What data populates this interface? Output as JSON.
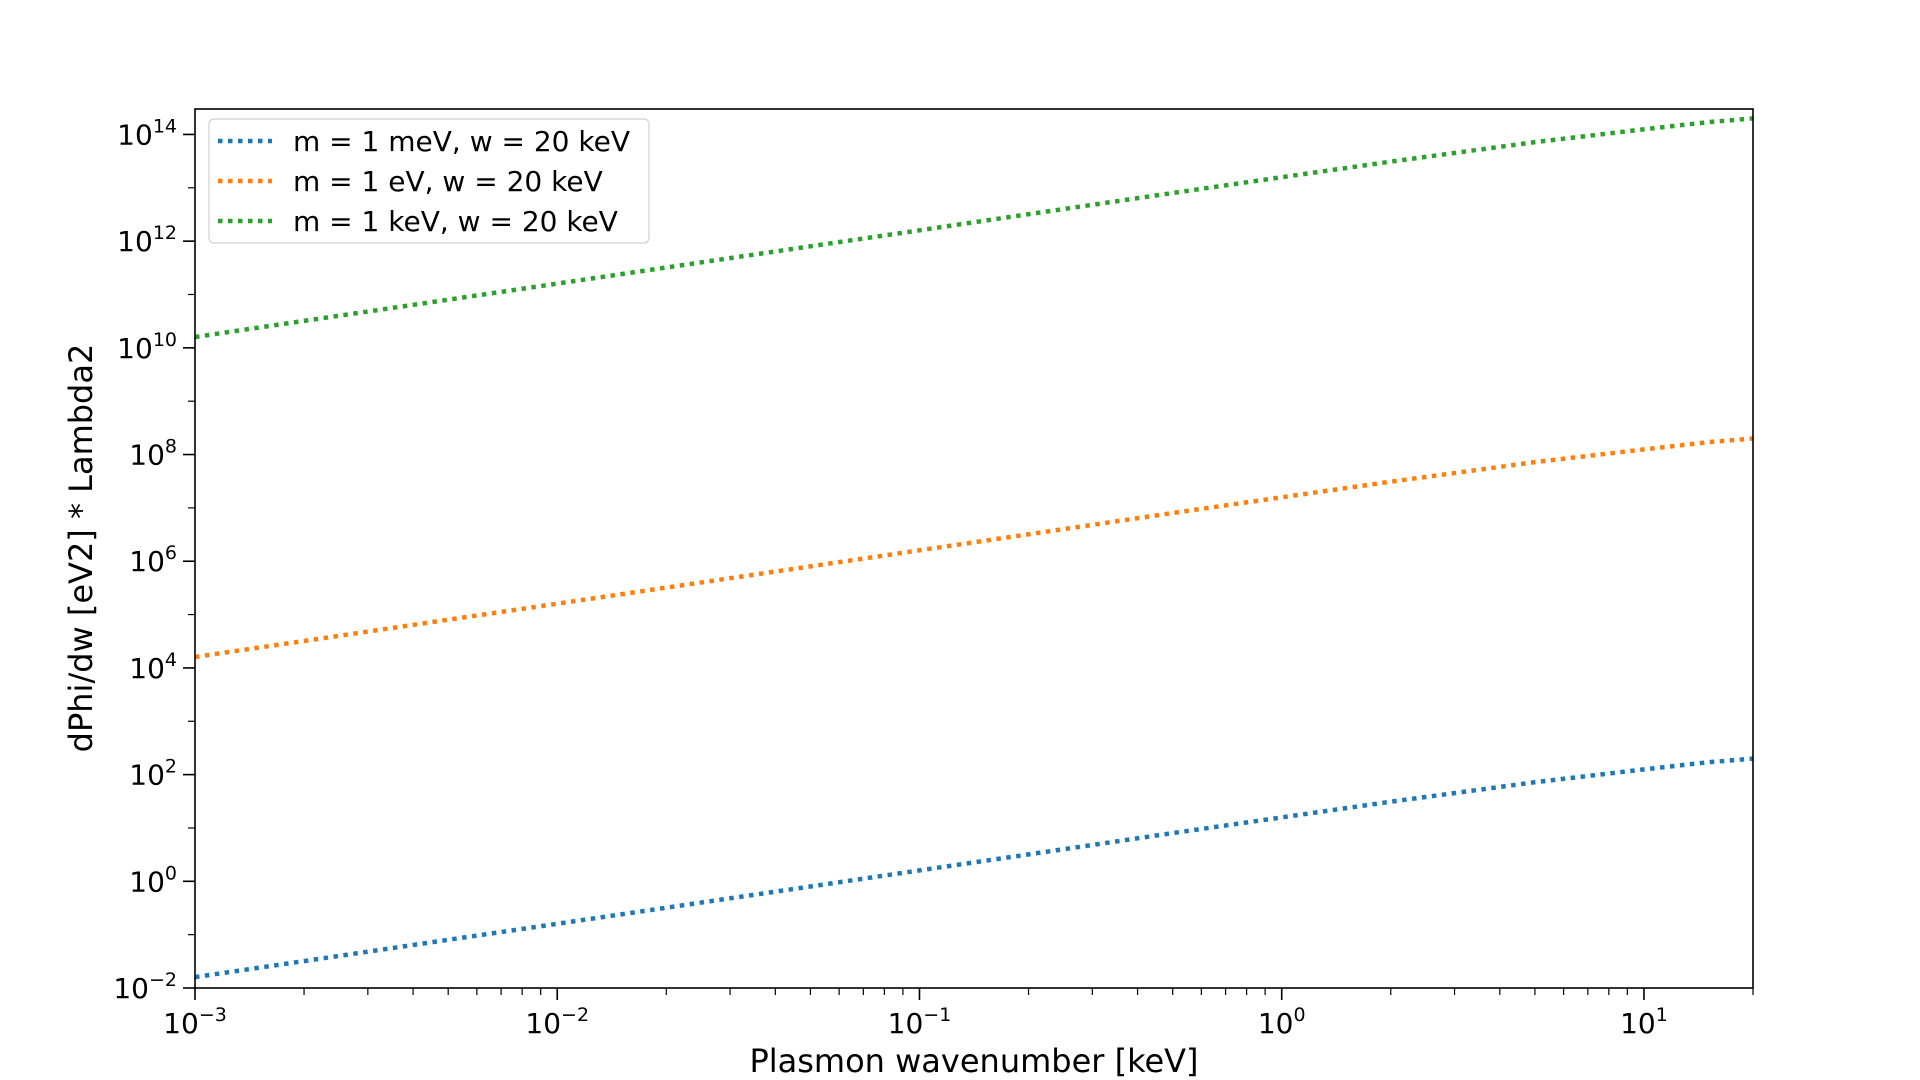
{
  "chart_data": {
    "type": "line",
    "title": "",
    "xlabel": "Plasmon wavenumber [keV]",
    "ylabel": "dPhi/dw [eV2] * Lambda2",
    "xscale": "log",
    "yscale": "log",
    "xlim": [
      0.001,
      20
    ],
    "ylim": [
      0.01,
      300000000000000
    ],
    "grid": false,
    "legend_position": "top-left",
    "x_ticks": [
      {
        "value": 0.001,
        "base": "10",
        "exp": "−3"
      },
      {
        "value": 0.01,
        "base": "10",
        "exp": "−2"
      },
      {
        "value": 0.1,
        "base": "10",
        "exp": "−1"
      },
      {
        "value": 1,
        "base": "10",
        "exp": "0"
      },
      {
        "value": 10,
        "base": "10",
        "exp": "1"
      }
    ],
    "y_ticks": [
      {
        "value": 0.01,
        "base": "10",
        "exp": "−2"
      },
      {
        "value": 1,
        "base": "10",
        "exp": "0"
      },
      {
        "value": 100,
        "base": "10",
        "exp": "2"
      },
      {
        "value": 10000,
        "base": "10",
        "exp": "4"
      },
      {
        "value": 1000000,
        "base": "10",
        "exp": "6"
      },
      {
        "value": 100000000,
        "base": "10",
        "exp": "8"
      },
      {
        "value": 10000000000,
        "base": "10",
        "exp": "10"
      },
      {
        "value": 1000000000000,
        "base": "10",
        "exp": "12"
      },
      {
        "value": 100000000000000,
        "base": "10",
        "exp": "14"
      }
    ],
    "series": [
      {
        "name": "m = 1 meV, w = 20 keV",
        "color": "#1f77b4",
        "x": [
          0.001,
          0.002,
          0.005,
          0.01,
          0.02,
          0.05,
          0.1,
          0.2,
          0.5,
          1,
          2,
          5,
          10,
          15,
          20
        ],
        "y": [
          0.016,
          0.032,
          0.08,
          0.16,
          0.32,
          0.8,
          1.6,
          3.2,
          8,
          15.8,
          31,
          72,
          125,
          170,
          200
        ]
      },
      {
        "name": "m = 1 eV, w = 20 keV",
        "color": "#ff7f0e",
        "x": [
          0.001,
          0.002,
          0.005,
          0.01,
          0.02,
          0.05,
          0.1,
          0.2,
          0.5,
          1,
          2,
          5,
          10,
          15,
          20
        ],
        "y": [
          16000,
          32000,
          80000,
          160000,
          320000,
          800000,
          1600000,
          3200000,
          8000000,
          15800000,
          31000000,
          72000000,
          125000000,
          170000000,
          200000000
        ]
      },
      {
        "name": "m = 1 keV, w = 20 keV",
        "color": "#2ca02c",
        "x": [
          0.001,
          0.002,
          0.005,
          0.01,
          0.02,
          0.05,
          0.1,
          0.2,
          0.5,
          1,
          2,
          5,
          10,
          15,
          20
        ],
        "y": [
          16000000000,
          32000000000,
          80000000000,
          160000000000,
          320000000000,
          800000000000,
          1600000000000,
          3200000000000,
          8000000000000,
          15800000000000,
          31000000000000,
          72000000000000,
          125000000000000,
          170000000000000,
          200000000000000
        ]
      }
    ]
  }
}
